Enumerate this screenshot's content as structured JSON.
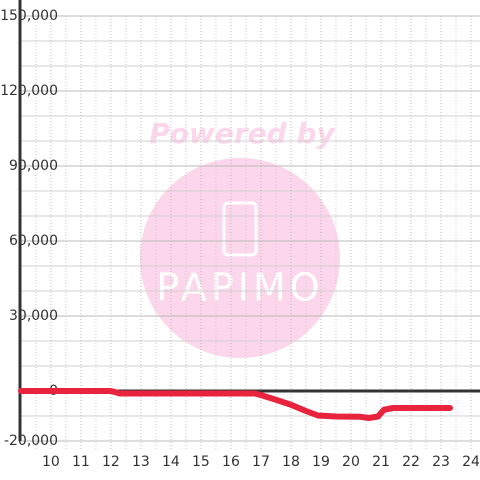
{
  "chart_data": {
    "type": "line",
    "watermark": {
      "top": "Powered by",
      "logo": "PAPIMO"
    },
    "x": [
      9,
      12,
      12.3,
      16.8,
      17.1,
      17.5,
      18,
      18.5,
      18.9,
      19.5,
      20.3,
      20.6,
      20.9,
      21.1,
      21.4,
      23.3
    ],
    "series": [
      {
        "color": "#e8233e",
        "values": [
          0,
          0,
          -1000,
          -1000,
          -2000,
          -3500,
          -5500,
          -8000,
          -9800,
          -10200,
          -10300,
          -10800,
          -10200,
          -7500,
          -6800,
          -6800
        ]
      }
    ],
    "xlim": [
      8.97,
      24.3
    ],
    "xticks": [
      10,
      11,
      12,
      13,
      14,
      15,
      16,
      17,
      18,
      19,
      20,
      21,
      22,
      23,
      24
    ],
    "minor_xticks": [
      9.5,
      10.5,
      11.5,
      12.5,
      13.5,
      14.5,
      15.5,
      16.5,
      17.5,
      18.5,
      19.5,
      20.5,
      21.5,
      22.5,
      23.5
    ],
    "ylim": [
      -20000,
      150000
    ],
    "yticks": [
      {
        "value": -20000,
        "label": "-20,000"
      },
      0,
      {
        "value": 30000,
        "label": "30,000"
      },
      {
        "value": 60000,
        "label": "60,000"
      },
      {
        "value": 90000,
        "label": "90,000"
      },
      {
        "value": 120000,
        "label": "120,000"
      },
      {
        "value": 150000,
        "label": "150,000"
      }
    ],
    "minor_yticks": [
      -10000,
      10000,
      20000,
      40000,
      50000,
      70000,
      80000,
      100000,
      110000,
      130000,
      140000
    ],
    "grid": true
  }
}
